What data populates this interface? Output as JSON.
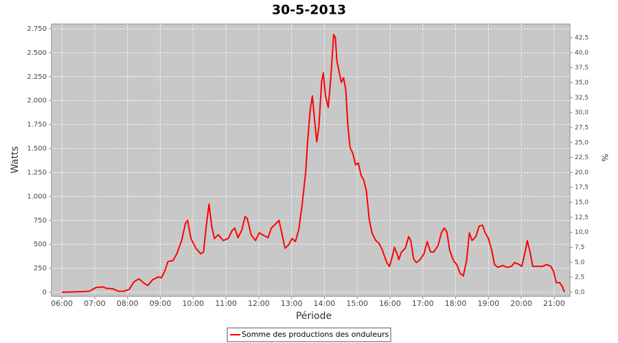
{
  "chart_data": {
    "type": "line",
    "title": "30-5-2013",
    "xlabel": "Période",
    "ylabel": "Watts",
    "y2label": "%",
    "x": [
      "06:00",
      "06:31",
      "06:50",
      "07:03",
      "07:15",
      "07:22",
      "07:34",
      "07:43",
      "07:53",
      "08:03",
      "08:12",
      "08:21",
      "08:31",
      "08:37",
      "08:46",
      "08:56",
      "09:02",
      "09:08",
      "09:14",
      "09:23",
      "09:30",
      "09:39",
      "09:46",
      "09:50",
      "09:56",
      "10:05",
      "10:14",
      "10:19",
      "10:24",
      "10:29",
      "10:34",
      "10:39",
      "10:46",
      "10:55",
      "11:04",
      "11:11",
      "11:16",
      "11:22",
      "11:29",
      "11:35",
      "11:39",
      "11:46",
      "11:54",
      "12:01",
      "12:10",
      "12:17",
      "12:23",
      "12:32",
      "12:37",
      "12:42",
      "12:48",
      "12:54",
      "13:01",
      "13:07",
      "13:13",
      "13:19",
      "13:26",
      "13:29",
      "13:34",
      "13:38",
      "13:42",
      "13:46",
      "13:50",
      "13:55",
      "13:58",
      "14:02",
      "14:07",
      "14:12",
      "14:17",
      "14:20",
      "14:23",
      "14:27",
      "14:31",
      "14:35",
      "14:39",
      "14:43",
      "14:47",
      "14:52",
      "14:57",
      "15:02",
      "15:07",
      "15:12",
      "15:17",
      "15:22",
      "15:27",
      "15:34",
      "15:40",
      "15:46",
      "15:54",
      "15:59",
      "16:04",
      "16:08",
      "16:13",
      "16:16",
      "16:21",
      "16:28",
      "16:34",
      "16:38",
      "16:43",
      "16:48",
      "16:55",
      "17:02",
      "17:08",
      "17:14",
      "17:20",
      "17:28",
      "17:34",
      "17:39",
      "17:44",
      "17:49",
      "17:56",
      "18:02",
      "18:08",
      "18:14",
      "18:20",
      "18:25",
      "18:30",
      "18:37",
      "18:43",
      "18:49",
      "18:54",
      "19:00",
      "19:06",
      "19:11",
      "19:17",
      "19:26",
      "19:34",
      "19:42",
      "19:48",
      "19:56",
      "20:01",
      "20:07",
      "20:11",
      "20:16",
      "20:21",
      "20:29",
      "20:39",
      "20:46",
      "20:54",
      "20:59",
      "21:04",
      "21:10",
      "21:15",
      "21:19"
    ],
    "series": [
      {
        "name": "Somme des productions des onduleurs",
        "color": "#ff0000",
        "values": [
          0,
          5,
          10,
          50,
          55,
          40,
          35,
          10,
          10,
          30,
          110,
          140,
          90,
          70,
          130,
          160,
          150,
          220,
          320,
          330,
          400,
          540,
          720,
          750,
          560,
          460,
          400,
          420,
          690,
          920,
          690,
          560,
          600,
          540,
          560,
          640,
          670,
          570,
          650,
          790,
          770,
          600,
          540,
          620,
          590,
          570,
          670,
          720,
          750,
          620,
          460,
          490,
          560,
          530,
          650,
          900,
          1260,
          1550,
          1900,
          2050,
          1800,
          1570,
          1730,
          2200,
          2290,
          2050,
          1930,
          2260,
          2690,
          2660,
          2410,
          2300,
          2190,
          2240,
          2120,
          1730,
          1510,
          1450,
          1330,
          1350,
          1220,
          1170,
          1050,
          760,
          620,
          540,
          510,
          440,
          310,
          270,
          370,
          470,
          400,
          340,
          420,
          460,
          580,
          540,
          350,
          310,
          340,
          400,
          530,
          420,
          420,
          490,
          620,
          670,
          630,
          440,
          330,
          290,
          200,
          170,
          330,
          620,
          540,
          580,
          690,
          700,
          620,
          560,
          440,
          290,
          260,
          280,
          260,
          270,
          310,
          290,
          270,
          420,
          540,
          420,
          270,
          270,
          270,
          290,
          270,
          220,
          100,
          100,
          60,
          0
        ]
      }
    ],
    "xlim": [
      "05:41",
      "21:29"
    ],
    "xticks": [
      "06:00",
      "07:00",
      "08:00",
      "09:00",
      "10:00",
      "11:00",
      "12:00",
      "13:00",
      "14:00",
      "15:00",
      "16:00",
      "17:00",
      "18:00",
      "19:00",
      "20:00",
      "21:00"
    ],
    "ylim": [
      -43,
      2800
    ],
    "yticks": [
      0,
      250,
      500,
      750,
      {
        "value": 1000,
        "label": "1.000"
      },
      {
        "value": 1250,
        "label": "1.250"
      },
      {
        "value": 1500,
        "label": "1.500"
      },
      {
        "value": 1750,
        "label": "1.750"
      },
      {
        "value": 2000,
        "label": "2.000"
      },
      {
        "value": 2250,
        "label": "2.250"
      },
      {
        "value": 2500,
        "label": "2.500"
      },
      {
        "value": 2750,
        "label": "2.750"
      }
    ],
    "y2lim": [
      -0.7,
      44.8
    ],
    "y2ticks": [
      {
        "value": 0,
        "label": "0,0"
      },
      {
        "value": 2.5,
        "label": "2,5"
      },
      {
        "value": 5,
        "label": "5,0"
      },
      {
        "value": 7.5,
        "label": "7,5"
      },
      {
        "value": 10,
        "label": "10,0"
      },
      {
        "value": 12.5,
        "label": "12,5"
      },
      {
        "value": 15,
        "label": "15,0"
      },
      {
        "value": 17.5,
        "label": "17,5"
      },
      {
        "value": 20,
        "label": "20,0"
      },
      {
        "value": 22.5,
        "label": "22,5"
      },
      {
        "value": 25,
        "label": "25,0"
      },
      {
        "value": 27.5,
        "label": "27,5"
      },
      {
        "value": 30,
        "label": "30,0"
      },
      {
        "value": 32.5,
        "label": "32,5"
      },
      {
        "value": 35,
        "label": "35,0"
      },
      {
        "value": 37.5,
        "label": "37,5"
      },
      {
        "value": 40,
        "label": "40,0"
      },
      {
        "value": 42.5,
        "label": "42,5"
      }
    ],
    "grid": true,
    "legend": "bottom"
  }
}
